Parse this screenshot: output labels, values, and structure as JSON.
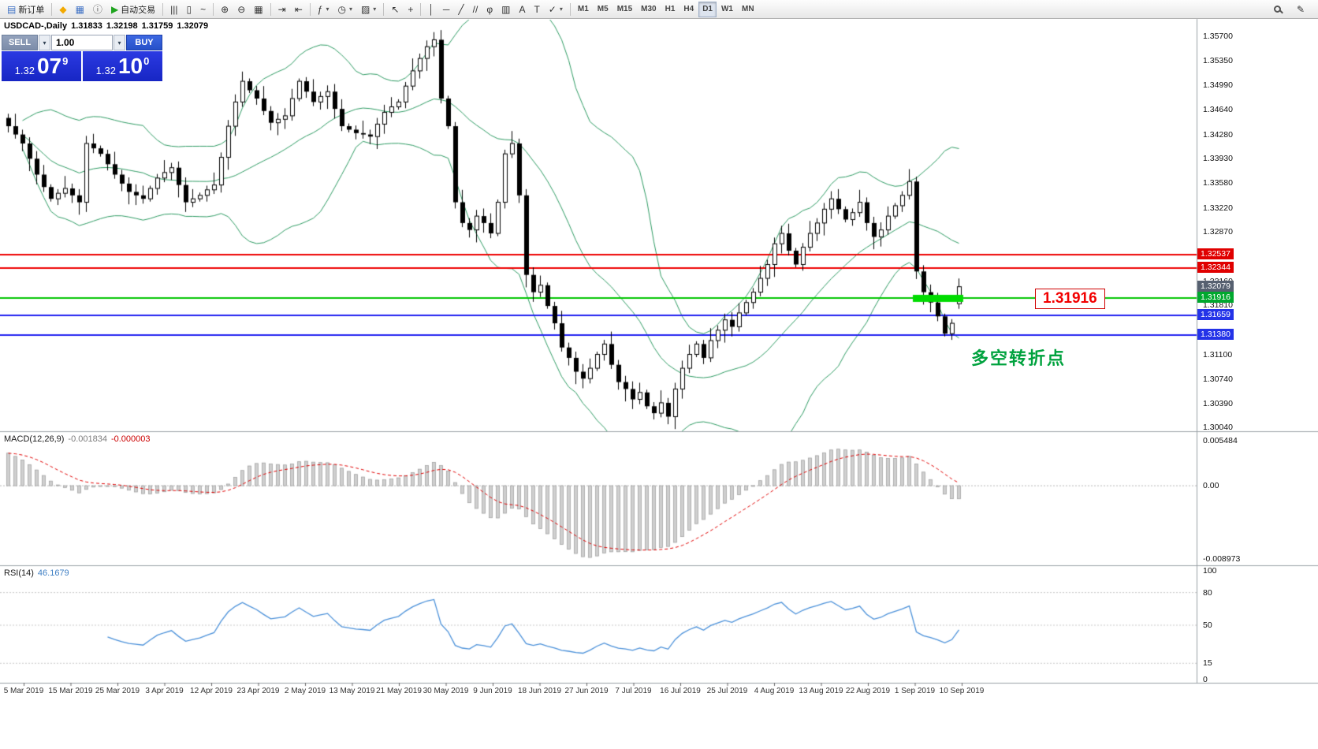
{
  "toolbar": {
    "groups": [
      {
        "items": [
          {
            "name": "new-order-button",
            "glyph": "▤",
            "color": "#3b6fc4",
            "label": "新订单"
          }
        ]
      },
      {
        "items": [
          {
            "name": "metaeditor-button",
            "glyph": "◆",
            "color": "#f2a900"
          },
          {
            "name": "market-watch-button",
            "glyph": "▦",
            "color": "#3b6fc4"
          },
          {
            "name": "data-window-button",
            "glyph": "ⓘ",
            "color": "#5a5a5a"
          },
          {
            "name": "autotrading-button",
            "glyph": "▶",
            "color": "#1fa41f",
            "label": "自动交易"
          }
        ]
      },
      {
        "items": [
          {
            "name": "bar-chart-mode-button",
            "glyph": "|||"
          },
          {
            "name": "candlestick-mode-button",
            "glyph": "▯"
          },
          {
            "name": "line-chart-mode-button",
            "glyph": "~"
          }
        ]
      },
      {
        "items": [
          {
            "name": "zoom-in-button",
            "glyph": "⊕"
          },
          {
            "name": "zoom-out-button",
            "glyph": "⊖"
          },
          {
            "name": "tile-windows-button",
            "glyph": "▦"
          }
        ]
      },
      {
        "items": [
          {
            "name": "auto-scroll-button",
            "glyph": "⇥"
          },
          {
            "name": "chart-shift-button",
            "glyph": "⇤"
          }
        ]
      },
      {
        "items": [
          {
            "name": "indicators-button",
            "glyph": "ƒ",
            "dropdown": true
          },
          {
            "name": "periods-button",
            "glyph": "◷",
            "dropdown": true
          },
          {
            "name": "templates-button",
            "glyph": "▨",
            "dropdown": true
          }
        ]
      },
      {
        "items": [
          {
            "name": "cursor-button",
            "glyph": "↖"
          },
          {
            "name": "crosshair-button",
            "glyph": "+"
          }
        ]
      },
      {
        "items": [
          {
            "name": "vertical-line-button",
            "glyph": "│"
          },
          {
            "name": "horizontal-line-button",
            "glyph": "─"
          },
          {
            "name": "trendline-button",
            "glyph": "╱"
          },
          {
            "name": "channel-button",
            "glyph": "//"
          },
          {
            "name": "fibonacci-button",
            "glyph": "φ"
          },
          {
            "name": "shapes-button",
            "glyph": "▥"
          },
          {
            "name": "text-button",
            "glyph": "A"
          },
          {
            "name": "label-button",
            "glyph": "T"
          },
          {
            "name": "arrows-button",
            "glyph": "✓",
            "dropdown": true
          }
        ]
      }
    ],
    "timeframes": {
      "items": [
        "M1",
        "M5",
        "M15",
        "M30",
        "H1",
        "H4",
        "D1",
        "W1",
        "MN"
      ],
      "active": "D1"
    },
    "right_items": [
      {
        "name": "search-button",
        "type": "mag"
      },
      {
        "name": "quick-edit-button",
        "glyph": "✎"
      }
    ]
  },
  "chart": {
    "title": {
      "symbol": "USDCAD-,Daily",
      "open": "1.31833",
      "high": "1.32198",
      "low": "1.31759",
      "close": "1.32079"
    },
    "annotation": "多空转折点",
    "callouts": {
      "level_text": "1.31916"
    }
  },
  "trade": {
    "sell_label": "SELL",
    "buy_label": "BUY",
    "volume": "1.00",
    "sell_price": {
      "small": "1.32",
      "big": "07",
      "sup": "9"
    },
    "buy_price": {
      "small": "1.32",
      "big": "10",
      "sup": "0"
    }
  },
  "chart_data": [
    {
      "type": "candlestick",
      "title": "USDCAD Daily",
      "ylim": [
        1.3,
        1.3594
      ],
      "y_ticks": [
        "1.35700",
        "1.35350",
        "1.34990",
        "1.34640",
        "1.34280",
        "1.33930",
        "1.33580",
        "1.33220",
        "1.32870",
        "1.32160",
        "1.31810",
        "1.31100",
        "1.30740",
        "1.30390",
        "1.30040"
      ],
      "x_labels": [
        "5 Mar 2019",
        "15 Mar 2019",
        "25 Mar 2019",
        "3 Apr 2019",
        "12 Apr 2019",
        "23 Apr 2019",
        "2 May 2019",
        "13 May 2019",
        "21 May 2019",
        "30 May 2019",
        "9 Jun 2019",
        "18 Jun 2019",
        "27 Jun 2019",
        "7 Jul 2019",
        "16 Jul 2019",
        "25 Jul 2019",
        "4 Aug 2019",
        "13 Aug 2019",
        "22 Aug 2019",
        "1 Sep 2019",
        "10 Sep 2019"
      ],
      "closes": [
        1.344,
        1.3428,
        1.3415,
        1.3393,
        1.337,
        1.3352,
        1.3335,
        1.3343,
        1.335,
        1.334,
        1.333,
        1.3415,
        1.3408,
        1.34,
        1.3385,
        1.337,
        1.3357,
        1.3345,
        1.334,
        1.3335,
        1.335,
        1.3365,
        1.3373,
        1.338,
        1.3355,
        1.333,
        1.3335,
        1.334,
        1.3348,
        1.3355,
        1.3395,
        1.344,
        1.3475,
        1.3505,
        1.3492,
        1.348,
        1.3462,
        1.3445,
        1.345,
        1.3455,
        1.348,
        1.3505,
        1.349,
        1.3475,
        1.3483,
        1.349,
        1.3465,
        1.344,
        1.3435,
        1.343,
        1.3428,
        1.3425,
        1.3443,
        1.346,
        1.3468,
        1.3475,
        1.3498,
        1.352,
        1.3538,
        1.3555,
        1.3565,
        1.348,
        1.344,
        1.333,
        1.33,
        1.329,
        1.331,
        1.33,
        1.3285,
        1.333,
        1.34,
        1.3415,
        1.334,
        1.3225,
        1.32,
        1.321,
        1.318,
        1.3155,
        1.312,
        1.3105,
        1.3085,
        1.3075,
        1.309,
        1.311,
        1.3125,
        1.3095,
        1.307,
        1.306,
        1.3045,
        1.3055,
        1.3035,
        1.3025,
        1.304,
        1.302,
        1.306,
        1.309,
        1.311,
        1.3125,
        1.3105,
        1.313,
        1.3145,
        1.316,
        1.315,
        1.317,
        1.3185,
        1.32,
        1.322,
        1.324,
        1.327,
        1.3285,
        1.326,
        1.324,
        1.3265,
        1.3285,
        1.33,
        1.332,
        1.3335,
        1.332,
        1.3305,
        1.3315,
        1.333,
        1.33,
        1.328,
        1.329,
        1.331,
        1.3325,
        1.334,
        1.336,
        1.323,
        1.32,
        1.3185,
        1.3165,
        1.314,
        1.3155,
        1.32079
      ],
      "last_ohlc": {
        "open": 1.31833,
        "high": 1.32198,
        "low": 1.31759,
        "close": 1.32079
      },
      "colors": {
        "up_fill": "#ffffff",
        "down_fill": "#000000",
        "outline": "#000000"
      },
      "overlays": {
        "bollinger": {
          "period": 20,
          "deviation": 2,
          "color": "#2e9b63"
        },
        "hlines": [
          {
            "price": 1.32537,
            "label": "1.32537",
            "color": "#ee0000",
            "box_bg": "#e00000"
          },
          {
            "price": 1.32344,
            "label": "1.32344",
            "color": "#ee0000",
            "box_bg": "#e00000"
          },
          {
            "price": 1.32079,
            "label": "1.32079",
            "color": "#566070",
            "box_bg": "#566070",
            "line": false
          },
          {
            "price": 1.31916,
            "label": "1.31916",
            "color": "#00c400",
            "box_bg": "#00a82e"
          },
          {
            "price": 1.31659,
            "label": "1.31659",
            "color": "#2020f0",
            "box_bg": "#2433e8"
          },
          {
            "price": 1.3138,
            "label": "1.31380",
            "color": "#2020f0",
            "box_bg": "#2433e8"
          }
        ],
        "zone": {
          "price": 1.31916,
          "from_index": 128,
          "to_index": 134,
          "color": "#00dc00"
        }
      }
    },
    {
      "type": "macd",
      "label": "MACD(12,26,9)",
      "value_main": "-0.001834",
      "value_signal": "-0.000003",
      "params": [
        12,
        26,
        9
      ],
      "ylim": [
        -0.0092,
        0.0065
      ],
      "y_ticks": [
        "0.005484",
        "0.00",
        "-0.008973"
      ],
      "colors": {
        "hist_fill": "#cfcfcf",
        "hist_edge": "#9f9f9f",
        "signal": "#e00000",
        "zero": "#b8b8b8"
      }
    },
    {
      "type": "rsi",
      "label": "RSI(14)",
      "value": "46.1679",
      "period": 14,
      "ylim": [
        0,
        100
      ],
      "y_ticks": [
        "100",
        "80",
        "50",
        "15",
        "0"
      ],
      "levels": [
        80,
        50,
        15
      ],
      "colors": {
        "line": "#4a90d9",
        "level": "#c8c8c8"
      }
    }
  ]
}
